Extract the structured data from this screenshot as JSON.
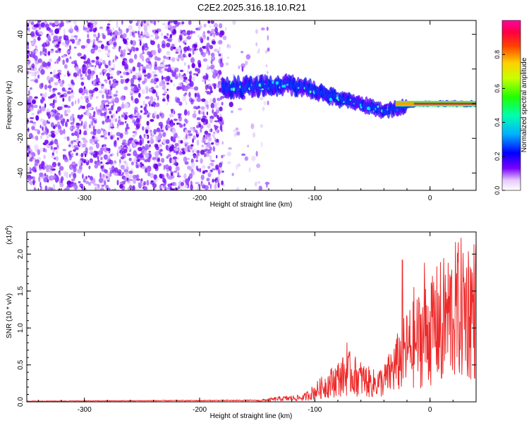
{
  "title": "C2E2.2025.316.18.10.R21",
  "chart_data": [
    {
      "type": "heatmap",
      "xlabel": "Height of straight line (km)",
      "ylabel": "Frequency (Hz)",
      "xlim": [
        -350,
        40
      ],
      "ylim": [
        -50,
        48
      ],
      "x_ticks": [
        -300,
        -200,
        -100,
        0
      ],
      "y_ticks": [
        -40,
        -20,
        0,
        20,
        40
      ],
      "colorbar": {
        "label": "Normalized spectral amplitude",
        "range": [
          0,
          1
        ],
        "ticks": [
          "0.0",
          "0.2",
          "0.4",
          "0.6",
          "0.8"
        ],
        "colors": [
          "#ffffff",
          "#7a00ff",
          "#0000ff",
          "#00d0ff",
          "#00ff40",
          "#ffff00",
          "#ff8000",
          "#ff0000",
          "#ff00a0"
        ]
      },
      "features": {
        "noise_region_x": [
          -350,
          -180
        ],
        "signal_track": [
          {
            "x": -180,
            "y": 9
          },
          {
            "x": -150,
            "y": 10
          },
          {
            "x": -125,
            "y": 11
          },
          {
            "x": -100,
            "y": 8
          },
          {
            "x": -80,
            "y": 3
          },
          {
            "x": -60,
            "y": 0
          },
          {
            "x": -40,
            "y": -4
          },
          {
            "x": -30,
            "y": -3
          },
          {
            "x": -20,
            "y": -1
          },
          {
            "x": -10,
            "y": 0
          },
          {
            "x": 0,
            "y": 0
          },
          {
            "x": 40,
            "y": 0
          }
        ]
      }
    },
    {
      "type": "line",
      "xlabel": "Height of straight line (km)",
      "ylabel": "SNR (10 * v/v)",
      "y_multiplier": "(x10",
      "y_multiplier_exp": "4",
      "y_multiplier_close": ")",
      "xlim": [
        -350,
        40
      ],
      "ylim": [
        0,
        2.3
      ],
      "x_ticks": [
        -300,
        -200,
        -100,
        0
      ],
      "y_ticks": [
        "0.0",
        "0.5",
        "1.0",
        "1.5",
        "2.0"
      ],
      "series": [
        {
          "color": "#ee2a2a",
          "envelope": [
            {
              "x": -350,
              "y": 0.01
            },
            {
              "x": -150,
              "y": 0.02
            },
            {
              "x": -130,
              "y": 0.06
            },
            {
              "x": -110,
              "y": 0.08
            },
            {
              "x": -100,
              "y": 0.2
            },
            {
              "x": -80,
              "y": 0.45
            },
            {
              "x": -70,
              "y": 0.55
            },
            {
              "x": -60,
              "y": 0.45
            },
            {
              "x": -50,
              "y": 0.35
            },
            {
              "x": -40,
              "y": 0.4
            },
            {
              "x": -30,
              "y": 0.7
            },
            {
              "x": -20,
              "y": 1.0
            },
            {
              "x": -10,
              "y": 1.2
            },
            {
              "x": 0,
              "y": 1.4
            },
            {
              "x": 10,
              "y": 1.55
            },
            {
              "x": 20,
              "y": 1.72
            },
            {
              "x": 30,
              "y": 1.82
            },
            {
              "x": 40,
              "y": 1.8
            }
          ],
          "spikes": [
            {
              "x": 10,
              "y": 2.3
            },
            {
              "x": -24,
              "y": 1.92
            },
            {
              "x": -5,
              "y": 1.88
            },
            {
              "x": -72,
              "y": 0.8
            },
            {
              "x": 2,
              "y": 1.7
            },
            {
              "x": -14,
              "y": 1.55
            },
            {
              "x": 10,
              "y": 0.32
            }
          ]
        }
      ]
    }
  ]
}
